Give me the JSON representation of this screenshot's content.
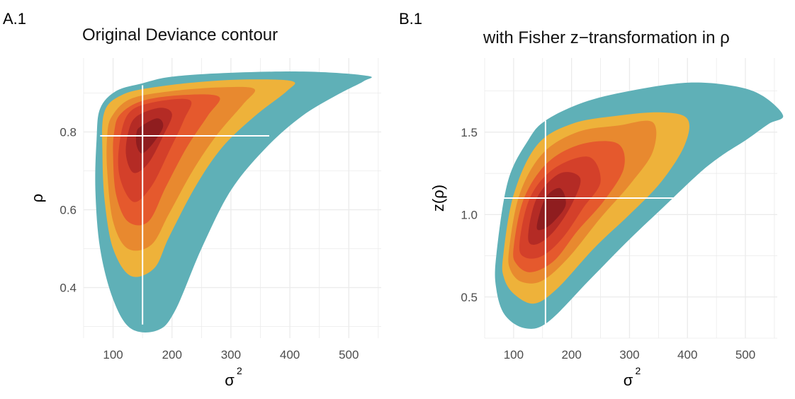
{
  "chart_data": [
    {
      "type": "contour",
      "panel_tag": "A.1",
      "title": "Original Deviance contour",
      "xlabel": "σ",
      "xlabel_sup": "2",
      "ylabel": "ρ",
      "xlim": [
        50,
        555
      ],
      "ylim": [
        0.27,
        0.99
      ],
      "xticks": [
        100,
        200,
        300,
        400,
        500
      ],
      "xtick_labels": [
        "100",
        "200",
        "300",
        "400",
        "500"
      ],
      "yticks": [
        0.4,
        0.6,
        0.8
      ],
      "ytick_labels": [
        "0.4",
        "0.6",
        "0.8"
      ],
      "grid": true,
      "colors": [
        "#5fb0b7",
        "#eeb23a",
        "#e8892f",
        "#e5592d",
        "#d4402a",
        "#b42b25",
        "#8f1d1f"
      ],
      "contours": [
        {
          "level": 1,
          "color": "#5fb0b7",
          "points": [
            [
              78,
              0.86
            ],
            [
              105,
              0.905
            ],
            [
              150,
              0.925
            ],
            [
              200,
              0.942
            ],
            [
              300,
              0.952
            ],
            [
              430,
              0.955
            ],
            [
              532,
              0.944
            ],
            [
              525,
              0.93
            ],
            [
              480,
              0.895
            ],
            [
              420,
              0.84
            ],
            [
              360,
              0.76
            ],
            [
              300,
              0.65
            ],
            [
              250,
              0.5
            ],
            [
              205,
              0.34
            ],
            [
              175,
              0.29
            ],
            [
              130,
              0.295
            ],
            [
              100,
              0.37
            ],
            [
              78,
              0.5
            ],
            [
              70,
              0.65
            ],
            [
              72,
              0.78
            ]
          ]
        },
        {
          "level": 2,
          "color": "#eeb23a",
          "points": [
            [
              85,
              0.85
            ],
            [
              115,
              0.895
            ],
            [
              170,
              0.915
            ],
            [
              260,
              0.93
            ],
            [
              340,
              0.935
            ],
            [
              405,
              0.93
            ],
            [
              395,
              0.905
            ],
            [
              340,
              0.84
            ],
            [
              285,
              0.76
            ],
            [
              240,
              0.66
            ],
            [
              195,
              0.53
            ],
            [
              170,
              0.45
            ],
            [
              130,
              0.43
            ],
            [
              100,
              0.5
            ],
            [
              86,
              0.62
            ],
            [
              82,
              0.74
            ]
          ]
        },
        {
          "level": 3,
          "color": "#e8892f",
          "points": [
            [
              98,
              0.84
            ],
            [
              130,
              0.885
            ],
            [
              200,
              0.905
            ],
            [
              290,
              0.915
            ],
            [
              340,
              0.91
            ],
            [
              320,
              0.87
            ],
            [
              275,
              0.79
            ],
            [
              235,
              0.7
            ],
            [
              195,
              0.59
            ],
            [
              165,
              0.51
            ],
            [
              125,
              0.5
            ],
            [
              100,
              0.57
            ],
            [
              90,
              0.7
            ],
            [
              90,
              0.79
            ]
          ]
        },
        {
          "level": 4,
          "color": "#e5592d",
          "points": [
            [
              112,
              0.845
            ],
            [
              150,
              0.88
            ],
            [
              220,
              0.895
            ],
            [
              280,
              0.89
            ],
            [
              260,
              0.84
            ],
            [
              225,
              0.76
            ],
            [
              190,
              0.66
            ],
            [
              160,
              0.57
            ],
            [
              125,
              0.57
            ],
            [
              105,
              0.64
            ],
            [
              100,
              0.74
            ],
            [
              102,
              0.8
            ]
          ]
        },
        {
          "level": 5,
          "color": "#d4402a",
          "points": [
            [
              125,
              0.845
            ],
            [
              165,
              0.875
            ],
            [
              230,
              0.882
            ],
            [
              220,
              0.83
            ],
            [
              195,
              0.75
            ],
            [
              165,
              0.66
            ],
            [
              135,
              0.62
            ],
            [
              112,
              0.68
            ],
            [
              110,
              0.76
            ]
          ]
        },
        {
          "level": 6,
          "color": "#b42b25",
          "points": [
            [
              140,
              0.84
            ],
            [
              180,
              0.862
            ],
            [
              200,
              0.845
            ],
            [
              185,
              0.79
            ],
            [
              160,
              0.72
            ],
            [
              135,
              0.695
            ],
            [
              122,
              0.74
            ],
            [
              126,
              0.8
            ]
          ]
        },
        {
          "level": 7,
          "color": "#8f1d1f",
          "points": [
            [
              148,
              0.815
            ],
            [
              175,
              0.835
            ],
            [
              185,
              0.815
            ],
            [
              170,
              0.775
            ],
            [
              150,
              0.745
            ],
            [
              140,
              0.765
            ],
            [
              140,
              0.8
            ]
          ]
        }
      ],
      "mle": {
        "x": 150,
        "y": 0.79
      },
      "crosshair": {
        "vertical": {
          "x": 150,
          "y0": 0.305,
          "y1": 0.92
        },
        "horizontal": {
          "y": 0.79,
          "x0": 78,
          "x1": 365
        }
      }
    },
    {
      "type": "contour",
      "panel_tag": "B.1",
      "title": "with Fisher z−transformation in ρ",
      "xlabel": "σ",
      "xlabel_sup": "2",
      "ylabel": "z(ρ)",
      "xlim": [
        50,
        555
      ],
      "ylim": [
        0.25,
        1.95
      ],
      "xticks": [
        100,
        200,
        300,
        400,
        500
      ],
      "xtick_labels": [
        "100",
        "200",
        "300",
        "400",
        "500"
      ],
      "yticks": [
        0.5,
        1.0,
        1.5
      ],
      "ytick_labels": [
        "0.5",
        "1.0",
        "1.5"
      ],
      "grid": true,
      "colors": [
        "#5fb0b7",
        "#eeb23a",
        "#e8892f",
        "#e5592d",
        "#d4402a",
        "#b42b25",
        "#8f1d1f"
      ],
      "contours": [
        {
          "level": 1,
          "color": "#5fb0b7",
          "points": [
            [
              70,
              0.75
            ],
            [
              90,
              1.2
            ],
            [
              125,
              1.45
            ],
            [
              155,
              1.57
            ],
            [
              220,
              1.68
            ],
            [
              300,
              1.75
            ],
            [
              400,
              1.8
            ],
            [
              480,
              1.78
            ],
            [
              530,
              1.72
            ],
            [
              565,
              1.6
            ],
            [
              540,
              1.55
            ],
            [
              500,
              1.45
            ],
            [
              460,
              1.36
            ],
            [
              420,
              1.25
            ],
            [
              360,
              1.05
            ],
            [
              300,
              0.85
            ],
            [
              230,
              0.6
            ],
            [
              160,
              0.35
            ],
            [
              120,
              0.31
            ],
            [
              85,
              0.39
            ],
            [
              70,
              0.55
            ]
          ]
        },
        {
          "level": 2,
          "color": "#eeb23a",
          "points": [
            [
              82,
              0.75
            ],
            [
              100,
              1.12
            ],
            [
              140,
              1.42
            ],
            [
              200,
              1.55
            ],
            [
              280,
              1.6
            ],
            [
              355,
              1.62
            ],
            [
              400,
              1.58
            ],
            [
              395,
              1.42
            ],
            [
              355,
              1.2
            ],
            [
              300,
              1.0
            ],
            [
              240,
              0.8
            ],
            [
              175,
              0.55
            ],
            [
              135,
              0.46
            ],
            [
              100,
              0.52
            ],
            [
              83,
              0.62
            ]
          ]
        },
        {
          "level": 3,
          "color": "#e8892f",
          "points": [
            [
              92,
              0.78
            ],
            [
              110,
              1.12
            ],
            [
              150,
              1.37
            ],
            [
              210,
              1.5
            ],
            [
              280,
              1.54
            ],
            [
              340,
              1.56
            ],
            [
              340,
              1.38
            ],
            [
              300,
              1.18
            ],
            [
              250,
              0.98
            ],
            [
              195,
              0.74
            ],
            [
              150,
              0.6
            ],
            [
              115,
              0.59
            ],
            [
              95,
              0.66
            ]
          ]
        },
        {
          "level": 4,
          "color": "#e5592d",
          "points": [
            [
              100,
              0.8
            ],
            [
              118,
              1.1
            ],
            [
              160,
              1.32
            ],
            [
              220,
              1.43
            ],
            [
              280,
              1.43
            ],
            [
              290,
              1.28
            ],
            [
              255,
              1.08
            ],
            [
              210,
              0.9
            ],
            [
              170,
              0.72
            ],
            [
              130,
              0.65
            ],
            [
              105,
              0.7
            ]
          ]
        },
        {
          "level": 5,
          "color": "#d4402a",
          "points": [
            [
              110,
              0.82
            ],
            [
              128,
              1.1
            ],
            [
              170,
              1.28
            ],
            [
              230,
              1.35
            ],
            [
              250,
              1.2
            ],
            [
              220,
              1.04
            ],
            [
              185,
              0.86
            ],
            [
              150,
              0.75
            ],
            [
              120,
              0.74
            ]
          ]
        },
        {
          "level": 6,
          "color": "#b42b25",
          "points": [
            [
              125,
              0.86
            ],
            [
              140,
              1.1
            ],
            [
              180,
              1.25
            ],
            [
              215,
              1.22
            ],
            [
              200,
              1.06
            ],
            [
              170,
              0.9
            ],
            [
              140,
              0.82
            ]
          ]
        },
        {
          "level": 7,
          "color": "#8f1d1f",
          "points": [
            [
              140,
              0.93
            ],
            [
              155,
              1.1
            ],
            [
              180,
              1.16
            ],
            [
              190,
              1.06
            ],
            [
              170,
              0.96
            ],
            [
              150,
              0.91
            ]
          ]
        }
      ],
      "mle": {
        "x": 155,
        "y": 1.1
      },
      "crosshair": {
        "vertical": {
          "x": 155,
          "y0": 0.32,
          "y1": 1.57
        },
        "horizontal": {
          "y": 1.1,
          "x0": 80,
          "x1": 380
        }
      }
    }
  ]
}
